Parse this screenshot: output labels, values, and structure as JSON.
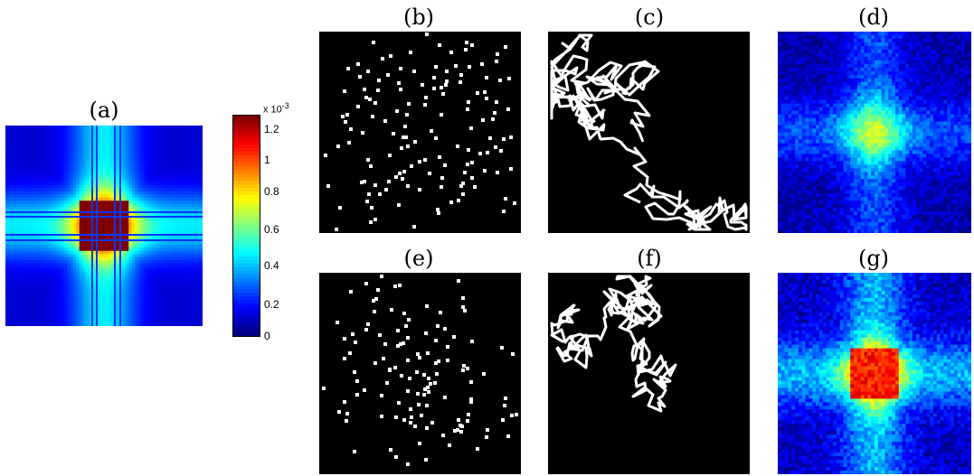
{
  "panels": {
    "a": {
      "label": "(a)"
    },
    "b": {
      "label": "(b)"
    },
    "c": {
      "label": "(c)"
    },
    "d": {
      "label": "(d)"
    },
    "e": {
      "label": "(e)"
    },
    "f": {
      "label": "(f)"
    },
    "g": {
      "label": "(g)"
    }
  },
  "colorbar": {
    "colormap": "jet",
    "exponent_label": "x 10",
    "exponent_power": "-3",
    "ticks": [
      "1.2",
      "1",
      "0.8",
      "0.6",
      "0.4",
      "0.2",
      "0"
    ]
  }
}
